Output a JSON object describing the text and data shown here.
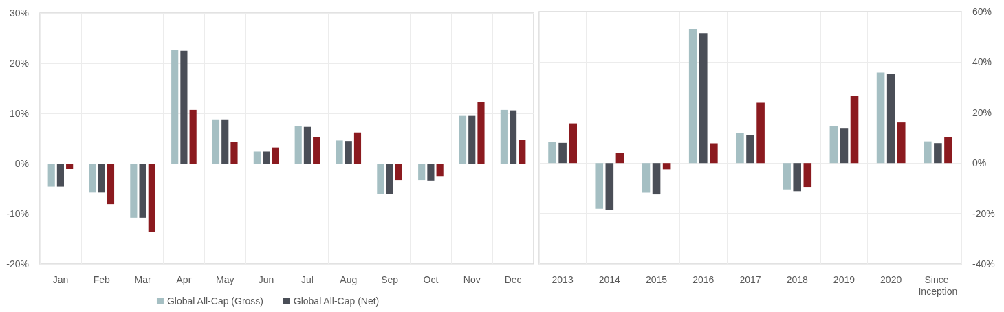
{
  "chart_data": [
    {
      "type": "bar",
      "categories": [
        "Jan",
        "Feb",
        "Mar",
        "Apr",
        "May",
        "Jun",
        "Jul",
        "Aug",
        "Sep",
        "Oct",
        "Nov",
        "Dec"
      ],
      "series": [
        {
          "name": "Global All-Cap (Gross)",
          "color": "#a5bfc3",
          "values": [
            -4.6,
            -5.8,
            -10.8,
            22.6,
            8.8,
            2.4,
            7.4,
            4.6,
            -6.1,
            -3.3,
            9.5,
            10.7
          ]
        },
        {
          "name": "Global All-Cap (Net)",
          "color": "#4a4e57",
          "values": [
            -4.6,
            -5.8,
            -10.8,
            22.5,
            8.8,
            2.4,
            7.3,
            4.5,
            -6.1,
            -3.4,
            9.5,
            10.6
          ]
        },
        {
          "color": "#8b1a1f",
          "values": [
            -1.1,
            -8.1,
            -13.6,
            10.7,
            4.3,
            3.2,
            5.3,
            6.2,
            -3.3,
            -2.5,
            12.3,
            4.7
          ]
        }
      ],
      "ylim": [
        -20,
        30
      ],
      "yticks": [
        {
          "value": -20,
          "label": "-20%"
        },
        {
          "value": -10,
          "label": "-10%"
        },
        {
          "value": 0,
          "label": "0%"
        },
        {
          "value": 10,
          "label": "10%"
        },
        {
          "value": 20,
          "label": "20%"
        },
        {
          "value": 30,
          "label": "30%"
        }
      ],
      "grid": true,
      "legend": "bottom"
    },
    {
      "type": "bar",
      "categories": [
        "2013",
        "2014",
        "2015",
        "2016",
        "2017",
        "2018",
        "2019",
        "2020",
        "Since Inception"
      ],
      "series": [
        {
          "color": "#a5bfc3",
          "axis": "y2",
          "values": [
            8.5,
            -18.1,
            -11.8,
            53.2,
            11.9,
            -10.5,
            14.6,
            35.9,
            8.6
          ]
        },
        {
          "color": "#4a4e57",
          "axis": "y2",
          "values": [
            8.0,
            -18.6,
            -12.5,
            51.5,
            11.2,
            -11.2,
            13.9,
            35.2,
            7.9
          ]
        },
        {
          "color": "#8b1a1f",
          "axis": "y2",
          "values": [
            15.7,
            4.1,
            -2.5,
            7.8,
            23.9,
            -9.5,
            26.5,
            16.1,
            10.4
          ]
        }
      ],
      "y2lim": [
        -40,
        60
      ],
      "y2ticks": [
        {
          "value": -40,
          "label": "-40%"
        },
        {
          "value": -20,
          "label": "-20%"
        },
        {
          "value": 0,
          "label": "0%"
        },
        {
          "value": 20,
          "label": "20%"
        },
        {
          "value": 40,
          "label": "40%"
        },
        {
          "value": 60,
          "label": "60%"
        }
      ],
      "grid": true
    }
  ]
}
